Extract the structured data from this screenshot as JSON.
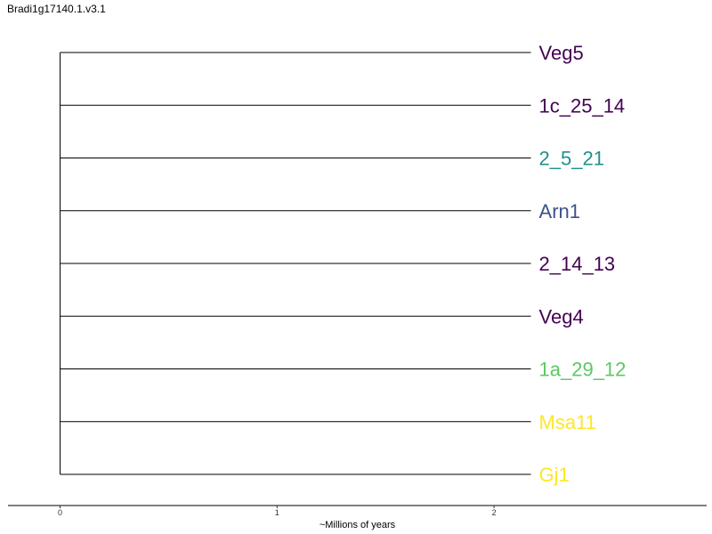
{
  "title": "Bradi1g17140.1.v3.1",
  "tree": {
    "tips": [
      {
        "label": "Veg5",
        "color": "#440154"
      },
      {
        "label": "1c_25_14",
        "color": "#440154"
      },
      {
        "label": "2_5_21",
        "color": "#21908C"
      },
      {
        "label": "Arn1",
        "color": "#3B528B"
      },
      {
        "label": "2_14_13",
        "color": "#440154"
      },
      {
        "label": "Veg4",
        "color": "#440154"
      },
      {
        "label": "1a_29_12",
        "color": "#5DC863"
      },
      {
        "label": "Msa11",
        "color": "#FDE725"
      },
      {
        "label": "Gj1",
        "color": "#FDE725"
      }
    ],
    "branch_length_myr": 2.17
  },
  "axis": {
    "title": "~Millions of years",
    "ticks": [
      "0",
      "1",
      "2"
    ],
    "range": [
      -0.24,
      2.98
    ]
  }
}
